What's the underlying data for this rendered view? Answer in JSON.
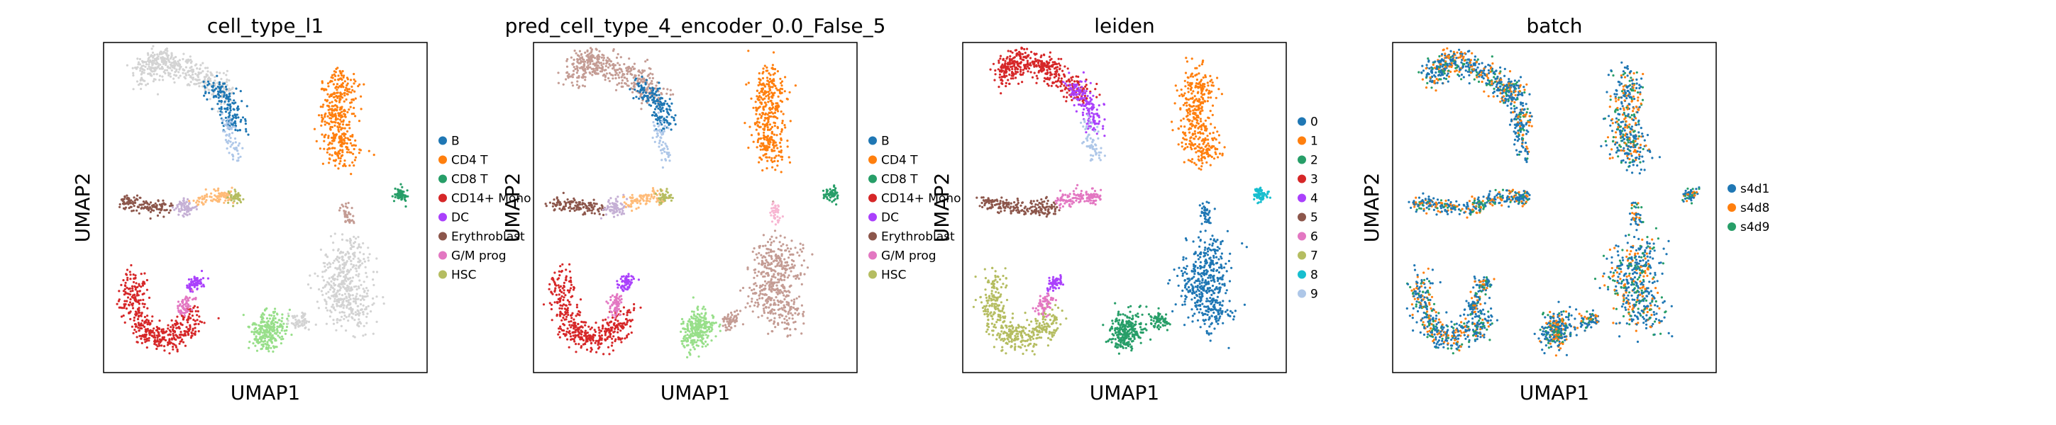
{
  "chart_data": [
    {
      "type": "scatter",
      "title": "cell_type_l1",
      "xlabel": "UMAP1",
      "ylabel": "UMAP2",
      "grid": false,
      "legend_position": "right",
      "legend": [
        {
          "label": "B",
          "color": "#1f77b4"
        },
        {
          "label": "CD4 T",
          "color": "#ff7f0e"
        },
        {
          "label": "CD8 T",
          "color": "#279e68"
        },
        {
          "label": "CD14+ Mono",
          "color": "#d62728"
        },
        {
          "label": "DC",
          "color": "#aa40fc"
        },
        {
          "label": "Erythroblast",
          "color": "#8c564b"
        },
        {
          "label": "G/M prog",
          "color": "#e377c2"
        },
        {
          "label": "HSC",
          "color": "#b5bd61"
        }
      ]
    },
    {
      "type": "scatter",
      "title": "pred_cell_type_4_encoder_0.0_False_5",
      "xlabel": "UMAP1",
      "ylabel": "UMAP2",
      "grid": false,
      "legend_position": "right",
      "legend": [
        {
          "label": "B",
          "color": "#1f77b4"
        },
        {
          "label": "CD4 T",
          "color": "#ff7f0e"
        },
        {
          "label": "CD8 T",
          "color": "#279e68"
        },
        {
          "label": "CD14+ Mono",
          "color": "#d62728"
        },
        {
          "label": "DC",
          "color": "#aa40fc"
        },
        {
          "label": "Erythroblast",
          "color": "#8c564b"
        },
        {
          "label": "G/M prog",
          "color": "#e377c2"
        },
        {
          "label": "HSC",
          "color": "#b5bd61"
        }
      ]
    },
    {
      "type": "scatter",
      "title": "leiden",
      "xlabel": "UMAP1",
      "ylabel": "UMAP2",
      "grid": false,
      "legend_position": "right",
      "legend": [
        {
          "label": "0",
          "color": "#1f77b4"
        },
        {
          "label": "1",
          "color": "#ff7f0e"
        },
        {
          "label": "2",
          "color": "#279e68"
        },
        {
          "label": "3",
          "color": "#d62728"
        },
        {
          "label": "4",
          "color": "#aa40fc"
        },
        {
          "label": "5",
          "color": "#8c564b"
        },
        {
          "label": "6",
          "color": "#e377c2"
        },
        {
          "label": "7",
          "color": "#b5bd61"
        },
        {
          "label": "8",
          "color": "#17becf"
        },
        {
          "label": "9",
          "color": "#aec7e8"
        }
      ]
    },
    {
      "type": "scatter",
      "title": "batch",
      "xlabel": "UMAP1",
      "ylabel": "UMAP2",
      "grid": false,
      "legend_position": "right",
      "legend": [
        {
          "label": "s4d1",
          "color": "#1f77b4"
        },
        {
          "label": "s4d8",
          "color": "#ff7f0e"
        },
        {
          "label": "s4d9",
          "color": "#279e68"
        }
      ]
    }
  ]
}
